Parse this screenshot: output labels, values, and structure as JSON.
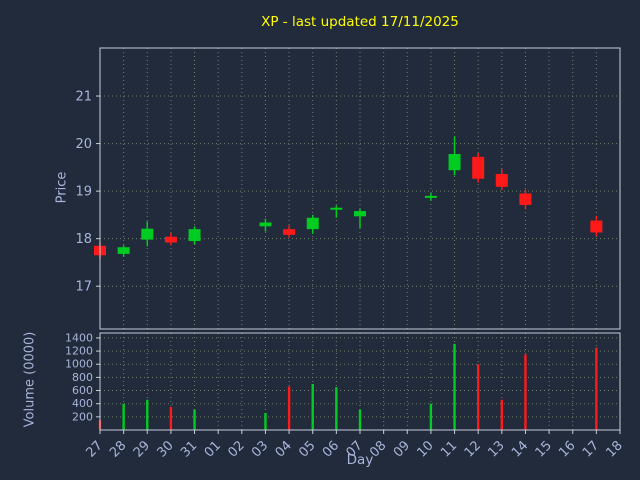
{
  "title": "XP - last updated 17/11/2025",
  "colors": {
    "background": "#212b3b",
    "title": "#ffff00",
    "text": "#a8b4da",
    "grid": "#72826a",
    "spine": "#c6cede",
    "up": "#00cc22",
    "down": "#ff1a1a"
  },
  "chart_data": [
    {
      "type": "candlestick",
      "name": "price-panel",
      "ylabel": "Price",
      "ylim": [
        16.1,
        22.01
      ],
      "y_ticks": [
        17,
        18,
        19,
        20,
        21
      ],
      "grid": true,
      "x_ticks": [
        "27",
        "28",
        "29",
        "30",
        "31",
        "01",
        "02",
        "03",
        "04",
        "05",
        "06",
        "07",
        "08",
        "09",
        "10",
        "11",
        "12",
        "13",
        "14",
        "15",
        "16",
        "17",
        "18"
      ],
      "candles": [
        {
          "day": "27",
          "open": 17.85,
          "high": 17.92,
          "low": 17.58,
          "close": 17.65
        },
        {
          "day": "28",
          "open": 17.68,
          "high": 17.86,
          "low": 17.62,
          "close": 17.82
        },
        {
          "day": "29",
          "open": 17.98,
          "high": 18.36,
          "low": 17.84,
          "close": 18.21
        },
        {
          "day": "30",
          "open": 18.04,
          "high": 18.12,
          "low": 17.86,
          "close": 17.92
        },
        {
          "day": "31",
          "open": 17.95,
          "high": 18.26,
          "low": 17.88,
          "close": 18.2
        },
        {
          "day": "03",
          "open": 18.26,
          "high": 18.42,
          "low": 18.15,
          "close": 18.34
        },
        {
          "day": "04",
          "open": 18.2,
          "high": 18.28,
          "low": 18.02,
          "close": 18.08
        },
        {
          "day": "05",
          "open": 18.2,
          "high": 18.5,
          "low": 18.1,
          "close": 18.44
        },
        {
          "day": "06",
          "open": 18.62,
          "high": 18.7,
          "low": 18.44,
          "close": 18.65
        },
        {
          "day": "07",
          "open": 18.47,
          "high": 18.63,
          "low": 18.22,
          "close": 18.58
        },
        {
          "day": "10",
          "open": 18.86,
          "high": 18.96,
          "low": 18.8,
          "close": 18.9
        },
        {
          "day": "11",
          "open": 19.44,
          "high": 20.15,
          "low": 19.33,
          "close": 19.78
        },
        {
          "day": "12",
          "open": 19.72,
          "high": 19.8,
          "low": 19.18,
          "close": 19.26
        },
        {
          "day": "13",
          "open": 19.36,
          "high": 19.46,
          "low": 19.02,
          "close": 19.09
        },
        {
          "day": "14",
          "open": 18.95,
          "high": 19.03,
          "low": 18.62,
          "close": 18.71
        },
        {
          "day": "17",
          "open": 18.38,
          "high": 18.48,
          "low": 18.05,
          "close": 18.13
        }
      ]
    },
    {
      "type": "bar",
      "name": "volume-panel",
      "ylabel": "Volume (0000)",
      "xlabel": "Day",
      "ylim": [
        0,
        1475
      ],
      "y_ticks": [
        200,
        400,
        600,
        800,
        1000,
        1200,
        1400
      ],
      "grid": true,
      "bars": [
        {
          "day": "27",
          "value": 150
        },
        {
          "day": "28",
          "value": 400
        },
        {
          "day": "29",
          "value": 460
        },
        {
          "day": "30",
          "value": 350
        },
        {
          "day": "31",
          "value": 310
        },
        {
          "day": "03",
          "value": 260
        },
        {
          "day": "04",
          "value": 660
        },
        {
          "day": "05",
          "value": 700
        },
        {
          "day": "06",
          "value": 650
        },
        {
          "day": "07",
          "value": 310
        },
        {
          "day": "10",
          "value": 400
        },
        {
          "day": "11",
          "value": 1310
        },
        {
          "day": "12",
          "value": 1000
        },
        {
          "day": "13",
          "value": 460
        },
        {
          "day": "14",
          "value": 1150
        },
        {
          "day": "17",
          "value": 1250
        }
      ]
    }
  ]
}
